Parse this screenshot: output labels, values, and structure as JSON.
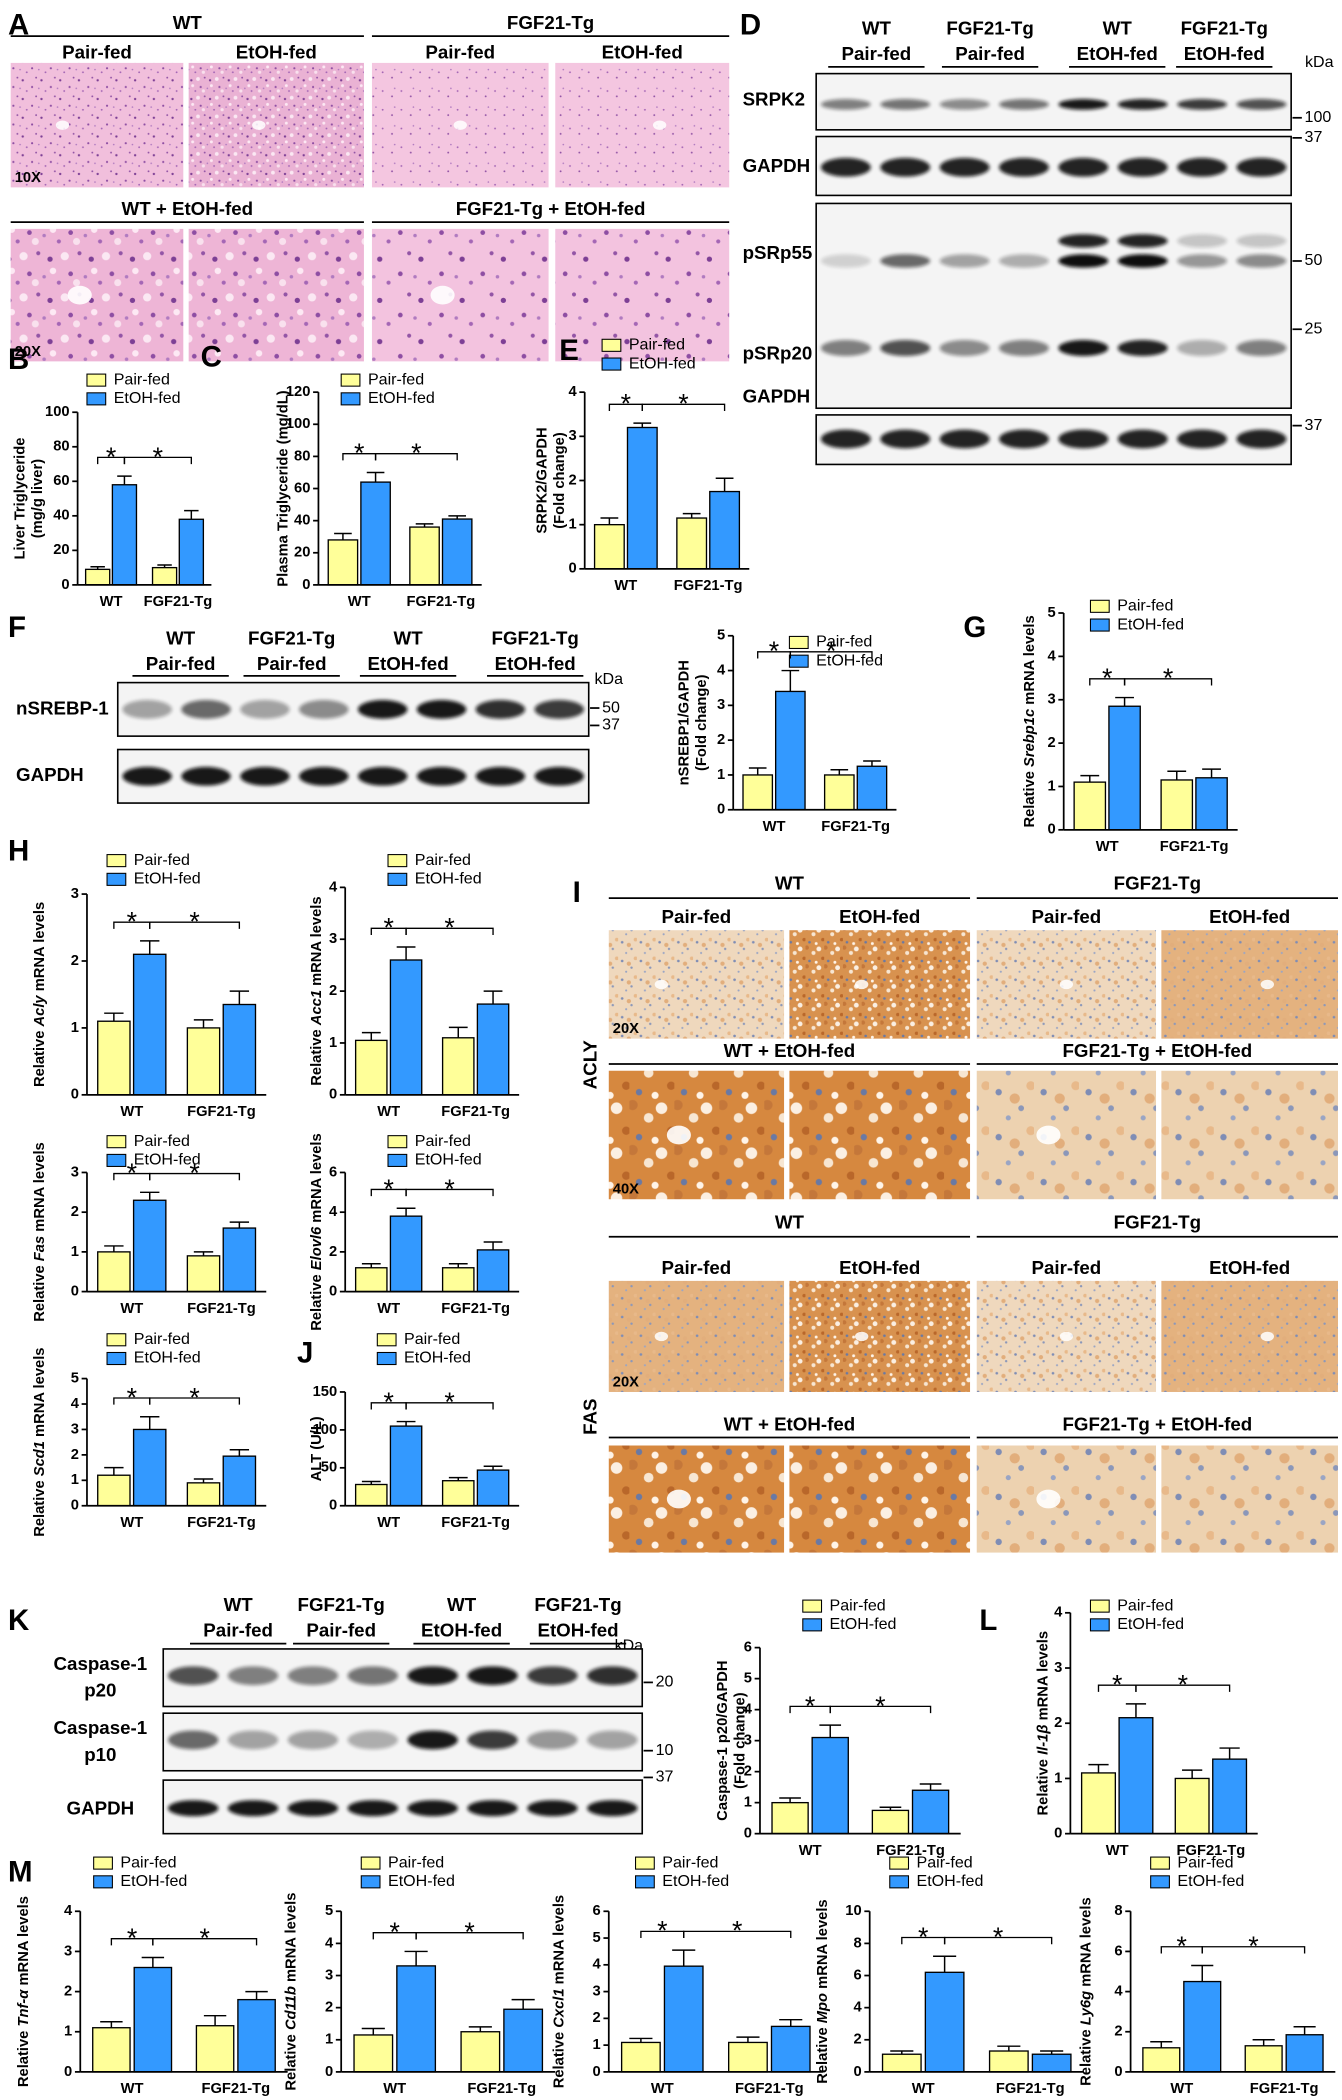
{
  "figure": {
    "A": {
      "label": "A",
      "groups": [
        "WT",
        "FGF21-Tg"
      ],
      "columns": [
        "Pair-fed",
        "EtOH-fed",
        "Pair-fed",
        "EtOH-fed"
      ],
      "row2": [
        "WT + EtOH-fed",
        "FGF21-Tg + EtOH-fed"
      ],
      "magnifications": [
        "10X",
        "20X"
      ]
    },
    "D": {
      "label": "D",
      "lanes": [
        [
          "WT",
          "Pair-fed"
        ],
        [
          "FGF21-Tg",
          "Pair-fed"
        ],
        [
          "WT",
          "EtOH-fed"
        ],
        [
          "FGF21-Tg",
          "EtOH-fed"
        ]
      ],
      "unit": "kDa",
      "blots": [
        [
          "SRPK2"
        ],
        [
          "GAPDH"
        ],
        [
          "pSRp55"
        ],
        [
          "pSRp20"
        ],
        [
          "GAPDH"
        ]
      ],
      "markers": [
        100,
        37,
        50,
        25,
        37
      ]
    },
    "F": {
      "label": "F",
      "lanes": [
        [
          "WT",
          "Pair-fed"
        ],
        [
          "FGF21-Tg",
          "Pair-fed"
        ],
        [
          "WT",
          "EtOH-fed"
        ],
        [
          "FGF21-Tg",
          "EtOH-fed"
        ]
      ],
      "unit": "kDa",
      "blots": [
        [
          "nSREBP-1"
        ],
        [
          "GAPDH"
        ]
      ],
      "markers": [
        50,
        37
      ]
    },
    "I": {
      "label": "I",
      "stains": [
        {
          "name": "ACLY",
          "groups": [
            "WT",
            "FGF21-Tg"
          ],
          "columns": [
            "Pair-fed",
            "EtOH-fed",
            "Pair-fed",
            "EtOH-fed"
          ],
          "row2": [
            "WT + EtOH-fed",
            "FGF21-Tg + EtOH-fed"
          ],
          "magnifications": [
            "20X",
            "40X"
          ]
        },
        {
          "name": "FAS",
          "groups": [
            "WT",
            "FGF21-Tg"
          ],
          "columns": [
            "Pair-fed",
            "EtOH-fed",
            "Pair-fed",
            "EtOH-fed"
          ],
          "row2": [
            "WT + EtOH-fed",
            "FGF21-Tg + EtOH-fed"
          ],
          "magnifications": [
            "20X"
          ]
        }
      ]
    },
    "K": {
      "label": "K",
      "lanes": [
        [
          "WT",
          "Pair-fed"
        ],
        [
          "FGF21-Tg",
          "Pair-fed"
        ],
        [
          "WT",
          "EtOH-fed"
        ],
        [
          "FGF21-Tg",
          "EtOH-fed"
        ]
      ],
      "unit": "kDa",
      "blots": [
        [
          "Caspase-1",
          "p20"
        ],
        [
          "Caspase-1",
          "p10"
        ],
        [
          "GAPDH"
        ]
      ],
      "markers": [
        20,
        10,
        37
      ]
    }
  },
  "chart_data": [
    {
      "type": "bar",
      "panel_label": "B",
      "ylabel": [
        [
          "Liver Triglyceride"
        ],
        [
          "(mg/g liver)"
        ]
      ],
      "categories": [
        "WT",
        "FGF21-Tg"
      ],
      "ylim": [
        0,
        100
      ],
      "yticks": [
        0,
        20,
        40,
        60,
        80,
        100
      ],
      "annotations": [
        "*",
        "*"
      ],
      "series": [
        {
          "name": "Pair-fed",
          "color": "#ffff99",
          "values": [
            9,
            10
          ],
          "errors": [
            1.5,
            1.5
          ]
        },
        {
          "name": "EtOH-fed",
          "color": "#3399ff",
          "values": [
            58,
            38
          ],
          "errors": [
            5,
            5
          ]
        }
      ]
    },
    {
      "type": "bar",
      "panel_label": "C",
      "ylabel": [
        [
          "Plasma Triglyceride (mg/dL)"
        ]
      ],
      "categories": [
        "WT",
        "FGF21-Tg"
      ],
      "ylim": [
        0,
        120
      ],
      "yticks": [
        0,
        20,
        40,
        60,
        80,
        100,
        120
      ],
      "annotations": [
        "*",
        "*"
      ],
      "series": [
        {
          "name": "Pair-fed",
          "color": "#ffff99",
          "values": [
            28,
            36
          ],
          "errors": [
            4,
            2
          ]
        },
        {
          "name": "EtOH-fed",
          "color": "#3399ff",
          "values": [
            64,
            41
          ],
          "errors": [
            6,
            2
          ]
        }
      ]
    },
    {
      "type": "bar",
      "panel_label": "E",
      "ylabel": [
        [
          "SRPK2/GAPDH"
        ],
        [
          "(Fold change)"
        ]
      ],
      "categories": [
        "WT",
        "FGF21-Tg"
      ],
      "ylim": [
        0,
        4
      ],
      "yticks": [
        0,
        1,
        2,
        3,
        4
      ],
      "annotations": [
        "*",
        "*"
      ],
      "series": [
        {
          "name": "Pair-fed",
          "color": "#ffff99",
          "values": [
            1.0,
            1.15
          ],
          "errors": [
            0.15,
            0.1
          ]
        },
        {
          "name": "EtOH-fed",
          "color": "#3399ff",
          "values": [
            3.2,
            1.75
          ],
          "errors": [
            0.1,
            0.3
          ]
        }
      ]
    },
    {
      "type": "bar",
      "ylabel": [
        [
          "nSREBP1/GAPDH"
        ],
        [
          "(Fold change)"
        ]
      ],
      "categories": [
        "WT",
        "FGF21-Tg"
      ],
      "ylim": [
        0,
        5
      ],
      "yticks": [
        0,
        1,
        2,
        3,
        4,
        5
      ],
      "annotations": [
        "*",
        "*"
      ],
      "series": [
        {
          "name": "Pair-fed",
          "color": "#ffff99",
          "values": [
            1.0,
            1.0
          ],
          "errors": [
            0.2,
            0.15
          ]
        },
        {
          "name": "EtOH-fed",
          "color": "#3399ff",
          "values": [
            3.4,
            1.25
          ],
          "errors": [
            0.6,
            0.15
          ]
        }
      ]
    },
    {
      "type": "bar",
      "panel_label": "G",
      "ylabel": [
        [
          "Relative ",
          "Srebp1c",
          " mRNA levels"
        ]
      ],
      "categories": [
        "WT",
        "FGF21-Tg"
      ],
      "ylim": [
        0,
        5
      ],
      "yticks": [
        0,
        1,
        2,
        3,
        4,
        5
      ],
      "annotations": [
        "*",
        "*"
      ],
      "series": [
        {
          "name": "Pair-fed",
          "color": "#ffff99",
          "values": [
            1.1,
            1.15
          ],
          "errors": [
            0.15,
            0.2
          ]
        },
        {
          "name": "EtOH-fed",
          "color": "#3399ff",
          "values": [
            2.85,
            1.2
          ],
          "errors": [
            0.2,
            0.2
          ]
        }
      ]
    },
    {
      "type": "bar",
      "panel_label": "H",
      "ylabel": [
        [
          "Relative ",
          "Acly",
          " mRNA levels"
        ]
      ],
      "categories": [
        "WT",
        "FGF21-Tg"
      ],
      "ylim": [
        0,
        3
      ],
      "yticks": [
        0,
        1,
        2,
        3
      ],
      "annotations": [
        "*",
        "*"
      ],
      "series": [
        {
          "name": "Pair-fed",
          "color": "#ffff99",
          "values": [
            1.1,
            1.0
          ],
          "errors": [
            0.12,
            0.12
          ]
        },
        {
          "name": "EtOH-fed",
          "color": "#3399ff",
          "values": [
            2.1,
            1.35
          ],
          "errors": [
            0.2,
            0.2
          ]
        }
      ]
    },
    {
      "type": "bar",
      "ylabel": [
        [
          "Relative ",
          "Acc1",
          " mRNA levels"
        ]
      ],
      "categories": [
        "WT",
        "FGF21-Tg"
      ],
      "ylim": [
        0,
        4
      ],
      "yticks": [
        0,
        1,
        2,
        3,
        4
      ],
      "annotations": [
        "*",
        "*"
      ],
      "series": [
        {
          "name": "Pair-fed",
          "color": "#ffff99",
          "values": [
            1.05,
            1.1
          ],
          "errors": [
            0.15,
            0.2
          ]
        },
        {
          "name": "EtOH-fed",
          "color": "#3399ff",
          "values": [
            2.6,
            1.75
          ],
          "errors": [
            0.25,
            0.25
          ]
        }
      ]
    },
    {
      "type": "bar",
      "ylabel": [
        [
          "Relative ",
          "Fas",
          " mRNA levels"
        ]
      ],
      "categories": [
        "WT",
        "FGF21-Tg"
      ],
      "ylim": [
        0,
        3
      ],
      "yticks": [
        0,
        1,
        2,
        3
      ],
      "annotations": [
        "*",
        "*"
      ],
      "series": [
        {
          "name": "Pair-fed",
          "color": "#ffff99",
          "values": [
            1.0,
            0.9
          ],
          "errors": [
            0.15,
            0.1
          ]
        },
        {
          "name": "EtOH-fed",
          "color": "#3399ff",
          "values": [
            2.3,
            1.6
          ],
          "errors": [
            0.2,
            0.15
          ]
        }
      ]
    },
    {
      "type": "bar",
      "ylabel": [
        [
          "Relative ",
          "Elovl6",
          " mRNA levels"
        ]
      ],
      "categories": [
        "WT",
        "FGF21-Tg"
      ],
      "ylim": [
        0,
        6
      ],
      "yticks": [
        0,
        2,
        4,
        6
      ],
      "annotations": [
        "*",
        "*"
      ],
      "series": [
        {
          "name": "Pair-fed",
          "color": "#ffff99",
          "values": [
            1.2,
            1.2
          ],
          "errors": [
            0.2,
            0.2
          ]
        },
        {
          "name": "EtOH-fed",
          "color": "#3399ff",
          "values": [
            3.8,
            2.1
          ],
          "errors": [
            0.4,
            0.4
          ]
        }
      ]
    },
    {
      "type": "bar",
      "ylabel": [
        [
          "Relative ",
          "Scd1",
          " mRNA levels"
        ]
      ],
      "categories": [
        "WT",
        "FGF21-Tg"
      ],
      "ylim": [
        0,
        5
      ],
      "yticks": [
        0,
        1,
        2,
        3,
        4,
        5
      ],
      "annotations": [
        "*",
        "*"
      ],
      "series": [
        {
          "name": "Pair-fed",
          "color": "#ffff99",
          "values": [
            1.2,
            0.9
          ],
          "errors": [
            0.3,
            0.15
          ]
        },
        {
          "name": "EtOH-fed",
          "color": "#3399ff",
          "values": [
            3.0,
            1.95
          ],
          "errors": [
            0.5,
            0.25
          ]
        }
      ]
    },
    {
      "type": "bar",
      "panel_label": "J",
      "ylabel": [
        [
          "ALT (U/L)"
        ]
      ],
      "categories": [
        "WT",
        "FGF21-Tg"
      ],
      "ylim": [
        0,
        150
      ],
      "yticks": [
        0,
        50,
        100,
        150
      ],
      "annotations": [
        "*",
        "*"
      ],
      "series": [
        {
          "name": "Pair-fed",
          "color": "#ffff99",
          "values": [
            28,
            33
          ],
          "errors": [
            4,
            4
          ]
        },
        {
          "name": "EtOH-fed",
          "color": "#3399ff",
          "values": [
            105,
            47
          ],
          "errors": [
            6,
            5
          ]
        }
      ]
    },
    {
      "type": "bar",
      "ylabel": [
        [
          "Caspase-1 p20/GAPDH"
        ],
        [
          "(Fold change)"
        ]
      ],
      "categories": [
        "WT",
        "FGF21-Tg"
      ],
      "ylim": [
        0,
        6
      ],
      "yticks": [
        0,
        1,
        2,
        3,
        4,
        5,
        6
      ],
      "annotations": [
        "*",
        "*"
      ],
      "series": [
        {
          "name": "Pair-fed",
          "color": "#ffff99",
          "values": [
            1.0,
            0.75
          ],
          "errors": [
            0.15,
            0.1
          ]
        },
        {
          "name": "EtOH-fed",
          "color": "#3399ff",
          "values": [
            3.1,
            1.4
          ],
          "errors": [
            0.4,
            0.2
          ]
        }
      ]
    },
    {
      "type": "bar",
      "panel_label": "L",
      "ylabel": [
        [
          "Relative ",
          "Il-1β",
          " mRNA levels"
        ]
      ],
      "categories": [
        "WT",
        "FGF21-Tg"
      ],
      "ylim": [
        0,
        4
      ],
      "yticks": [
        0,
        1,
        2,
        3,
        4
      ],
      "annotations": [
        "*",
        "*"
      ],
      "series": [
        {
          "name": "Pair-fed",
          "color": "#ffff99",
          "values": [
            1.1,
            1.0
          ],
          "errors": [
            0.15,
            0.15
          ]
        },
        {
          "name": "EtOH-fed",
          "color": "#3399ff",
          "values": [
            2.1,
            1.35
          ],
          "errors": [
            0.25,
            0.2
          ]
        }
      ]
    },
    {
      "type": "bar",
      "panel_label": "M",
      "ylabel": [
        [
          "Relative ",
          "Tnf-α",
          " mRNA levels"
        ]
      ],
      "categories": [
        "WT",
        "FGF21-Tg"
      ],
      "ylim": [
        0,
        4
      ],
      "yticks": [
        0,
        1,
        2,
        3,
        4
      ],
      "annotations": [
        "*",
        "*"
      ],
      "series": [
        {
          "name": "Pair-fed",
          "color": "#ffff99",
          "values": [
            1.1,
            1.15
          ],
          "errors": [
            0.15,
            0.25
          ]
        },
        {
          "name": "EtOH-fed",
          "color": "#3399ff",
          "values": [
            2.6,
            1.8
          ],
          "errors": [
            0.25,
            0.2
          ]
        }
      ]
    },
    {
      "type": "bar",
      "ylabel": [
        [
          "Relative ",
          "Cd11b",
          " mRNA levels"
        ]
      ],
      "categories": [
        "WT",
        "FGF21-Tg"
      ],
      "ylim": [
        0,
        5
      ],
      "yticks": [
        0,
        1,
        2,
        3,
        4,
        5
      ],
      "annotations": [
        "*",
        "*"
      ],
      "series": [
        {
          "name": "Pair-fed",
          "color": "#ffff99",
          "values": [
            1.15,
            1.25
          ],
          "errors": [
            0.2,
            0.15
          ]
        },
        {
          "name": "EtOH-fed",
          "color": "#3399ff",
          "values": [
            3.3,
            1.95
          ],
          "errors": [
            0.45,
            0.3
          ]
        }
      ]
    },
    {
      "type": "bar",
      "ylabel": [
        [
          "Relative ",
          "Cxcl1",
          " mRNA levels"
        ]
      ],
      "categories": [
        "WT",
        "FGF21-Tg"
      ],
      "ylim": [
        0,
        6
      ],
      "yticks": [
        0,
        1,
        2,
        3,
        4,
        5,
        6
      ],
      "annotations": [
        "*",
        "*"
      ],
      "series": [
        {
          "name": "Pair-fed",
          "color": "#ffff99",
          "values": [
            1.1,
            1.1
          ],
          "errors": [
            0.15,
            0.2
          ]
        },
        {
          "name": "EtOH-fed",
          "color": "#3399ff",
          "values": [
            3.95,
            1.7
          ],
          "errors": [
            0.6,
            0.25
          ]
        }
      ]
    },
    {
      "type": "bar",
      "ylabel": [
        [
          "Relative ",
          "Mpo",
          " mRNA levels"
        ]
      ],
      "categories": [
        "WT",
        "FGF21-Tg"
      ],
      "ylim": [
        0,
        10
      ],
      "yticks": [
        0,
        2,
        4,
        6,
        8,
        10
      ],
      "annotations": [
        "*",
        "*"
      ],
      "series": [
        {
          "name": "Pair-fed",
          "color": "#ffff99",
          "values": [
            1.1,
            1.3
          ],
          "errors": [
            0.2,
            0.3
          ]
        },
        {
          "name": "EtOH-fed",
          "color": "#3399ff",
          "values": [
            6.2,
            1.1
          ],
          "errors": [
            1.0,
            0.2
          ]
        }
      ]
    },
    {
      "type": "bar",
      "ylabel": [
        [
          "Relative ",
          "Ly6g",
          " mRNA levels"
        ]
      ],
      "categories": [
        "WT",
        "FGF21-Tg"
      ],
      "ylim": [
        0,
        8
      ],
      "yticks": [
        0,
        2,
        4,
        6,
        8
      ],
      "annotations": [
        "*",
        "*"
      ],
      "series": [
        {
          "name": "Pair-fed",
          "color": "#ffff99",
          "values": [
            1.2,
            1.3
          ],
          "errors": [
            0.3,
            0.3
          ]
        },
        {
          "name": "EtOH-fed",
          "color": "#3399ff",
          "values": [
            4.5,
            1.85
          ],
          "errors": [
            0.8,
            0.4
          ]
        }
      ]
    }
  ]
}
